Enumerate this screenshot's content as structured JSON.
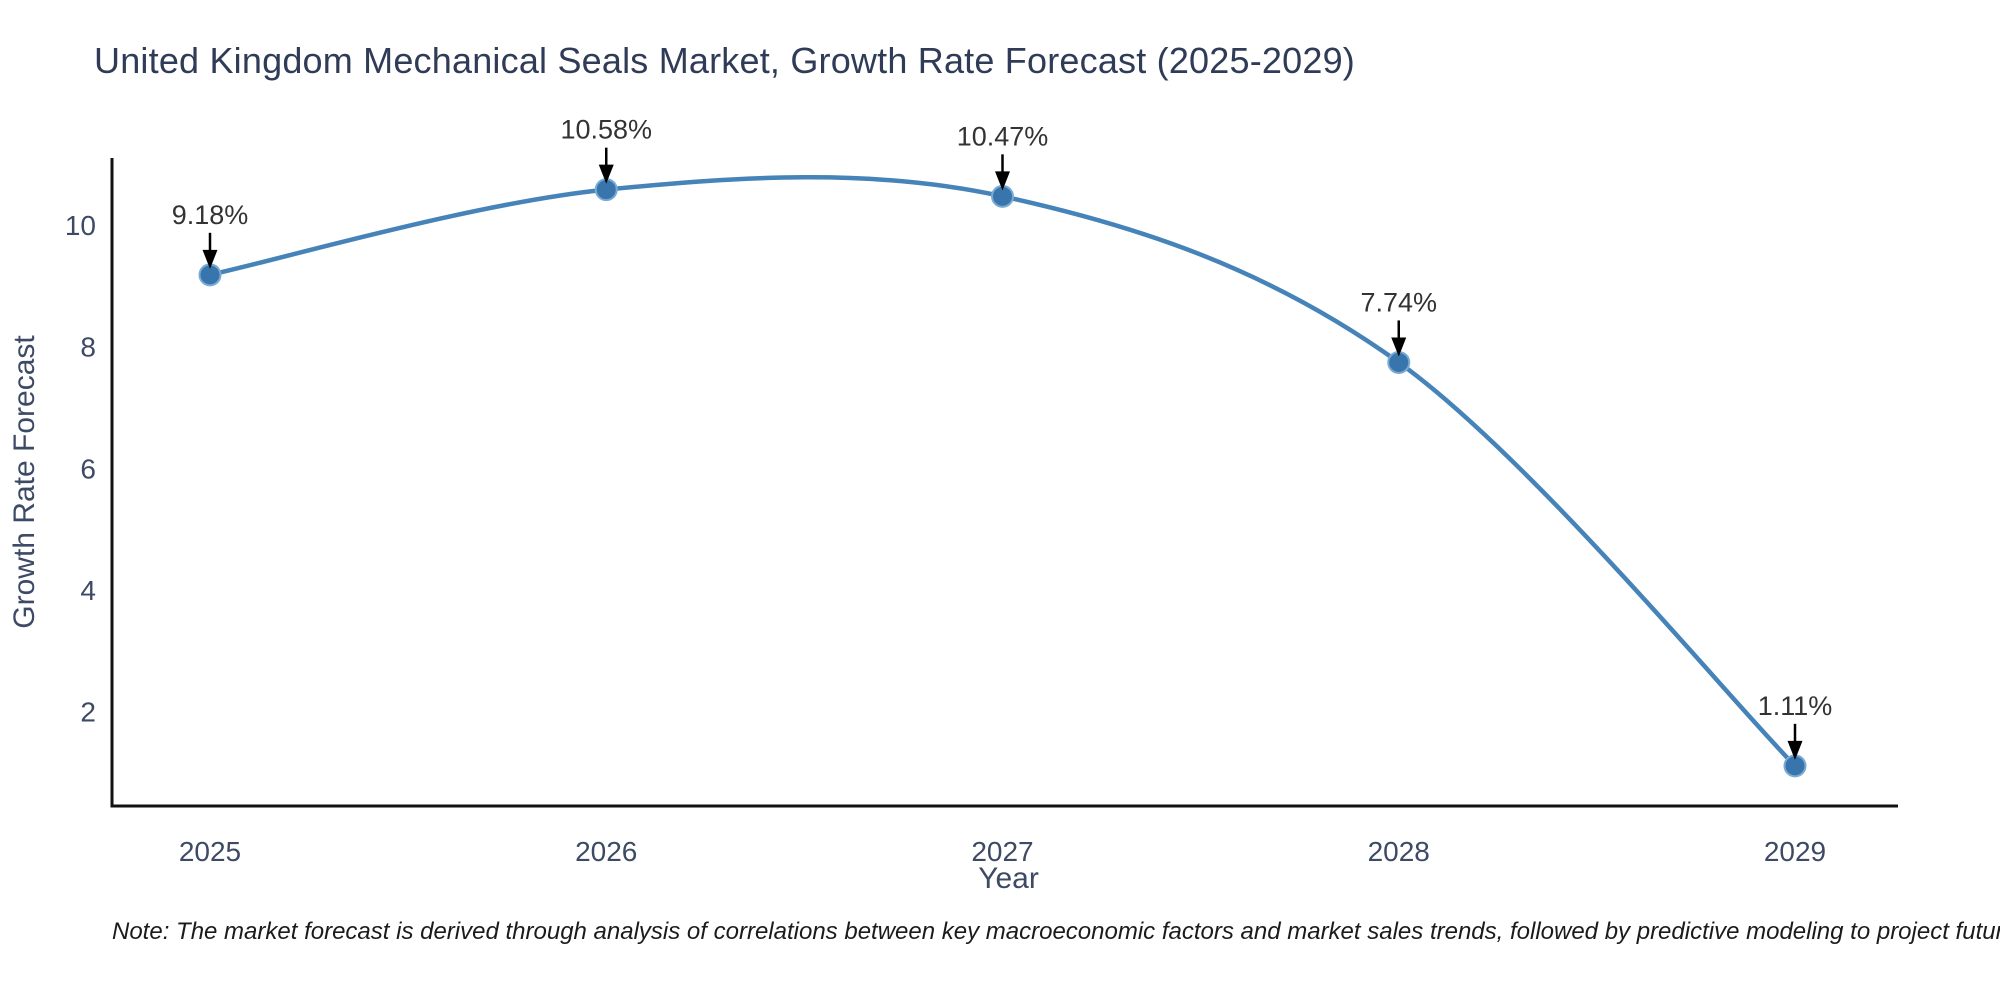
{
  "chart_data": {
    "type": "line",
    "title": "United Kingdom Mechanical Seals Market, Growth Rate Forecast (2025-2029)",
    "xlabel": "Year",
    "ylabel": "Growth Rate Forecast",
    "categories": [
      "2025",
      "2026",
      "2027",
      "2028",
      "2029"
    ],
    "series": [
      {
        "name": "Growth Rate Forecast",
        "values": [
          9.18,
          10.58,
          10.47,
          7.74,
          1.11
        ]
      }
    ],
    "point_labels": [
      "9.18%",
      "10.58%",
      "10.47%",
      "7.74%",
      "1.11%"
    ],
    "yticks": [
      2,
      4,
      6,
      8,
      10
    ],
    "ylim": [
      0.45,
      11.1
    ],
    "grid": false,
    "legend": "none",
    "colors": {
      "line": "#4583b8",
      "marker_fill": "#3875ac",
      "marker_edge": "#7aabd4",
      "annotation_text": "#333333",
      "annotation_arrow": "#000000",
      "axis_spine": "#111111",
      "tick_text": "#3d4a66",
      "title_text": "#2f3b57"
    }
  },
  "note": "Note: The market forecast is derived through analysis of correlations between key macroeconomic factors and market sales trends, followed by predictive modeling to project future sales"
}
